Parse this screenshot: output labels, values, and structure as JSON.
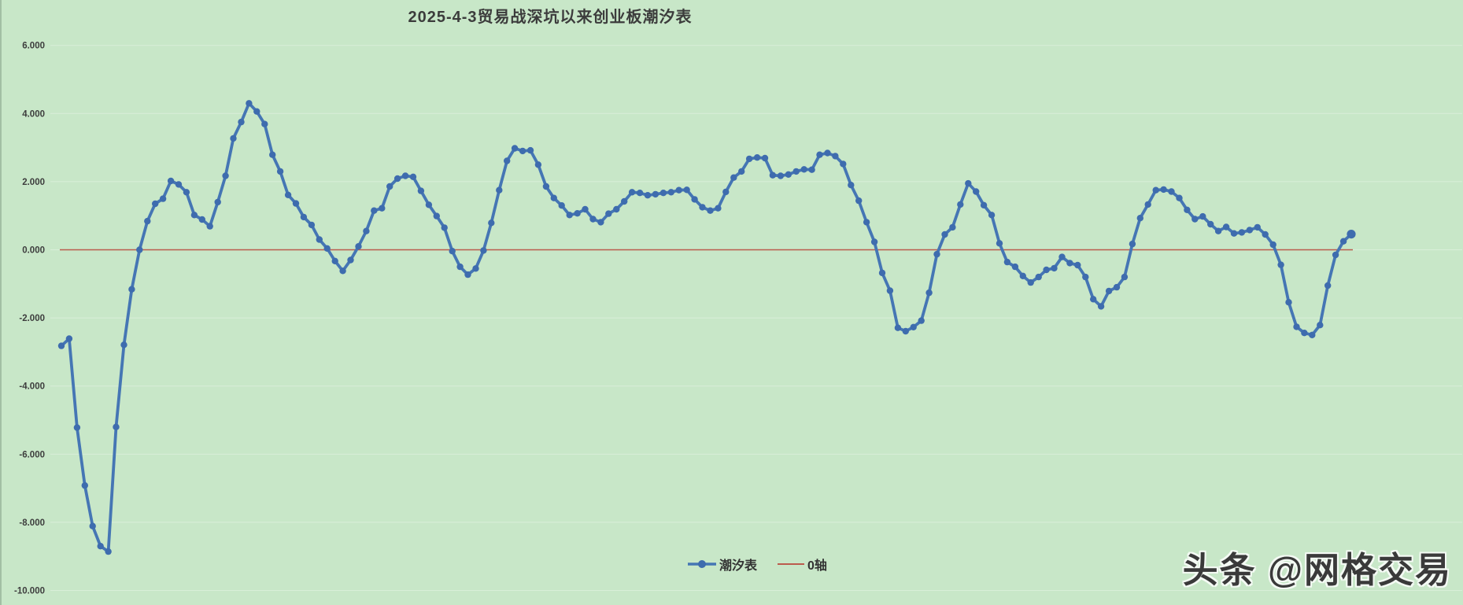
{
  "watermark": "头条 @网格交易",
  "colors": {
    "background": "#c8e7c8",
    "gridline": "#d9eed9",
    "tide_line": "#4576b4",
    "tide_marker": "#3e6cae",
    "zero_axis_line": "#bb5b4d",
    "title_text": "#3c3c3c",
    "axis_text": "#3d3d3d"
  },
  "chart_data": {
    "type": "line",
    "title": "2025-4-3贸易战深坑以来创业板潮汐表",
    "grid": true,
    "legend_position": "bottom-center",
    "x_axis": {
      "labels_visible": false,
      "points": 166
    },
    "y_axis": {
      "min": -10,
      "max": 6,
      "tick_step": 2,
      "tick_labels": [
        "6.000",
        "4.000",
        "2.000",
        "0.000",
        "-2.000",
        "-4.000",
        "-6.000",
        "-8.000",
        "-10.000"
      ]
    },
    "series": [
      {
        "name": "潮汐表",
        "color": "#4576b4",
        "marker": "circle",
        "values": [
          -2.82,
          -2.61,
          -5.22,
          -6.92,
          -8.11,
          -8.7,
          -8.86,
          -5.2,
          -2.79,
          -1.16,
          0.0,
          0.84,
          1.35,
          1.5,
          2.02,
          1.92,
          1.69,
          1.02,
          0.89,
          0.69,
          1.4,
          2.17,
          3.27,
          3.75,
          4.3,
          4.06,
          3.69,
          2.79,
          2.3,
          1.61,
          1.36,
          0.96,
          0.73,
          0.3,
          0.04,
          -0.33,
          -0.62,
          -0.3,
          0.1,
          0.55,
          1.15,
          1.22,
          1.86,
          2.09,
          2.17,
          2.14,
          1.73,
          1.32,
          0.99,
          0.65,
          -0.04,
          -0.5,
          -0.73,
          -0.55,
          -0.02,
          0.79,
          1.75,
          2.61,
          2.98,
          2.9,
          2.92,
          2.5,
          1.86,
          1.52,
          1.3,
          1.02,
          1.07,
          1.19,
          0.9,
          0.81,
          1.06,
          1.19,
          1.42,
          1.69,
          1.67,
          1.6,
          1.63,
          1.67,
          1.69,
          1.75,
          1.76,
          1.48,
          1.25,
          1.15,
          1.22,
          1.7,
          2.12,
          2.3,
          2.67,
          2.71,
          2.69,
          2.19,
          2.17,
          2.21,
          2.3,
          2.36,
          2.35,
          2.79,
          2.84,
          2.75,
          2.52,
          1.9,
          1.44,
          0.81,
          0.23,
          -0.68,
          -1.2,
          -2.29,
          -2.39,
          -2.27,
          -2.08,
          -1.26,
          -0.13,
          0.45,
          0.66,
          1.33,
          1.95,
          1.71,
          1.31,
          1.02,
          0.19,
          -0.36,
          -0.5,
          -0.77,
          -0.96,
          -0.8,
          -0.59,
          -0.54,
          -0.21,
          -0.39,
          -0.45,
          -0.8,
          -1.45,
          -1.66,
          -1.21,
          -1.1,
          -0.8,
          0.17,
          0.93,
          1.33,
          1.75,
          1.77,
          1.71,
          1.52,
          1.17,
          0.9,
          0.98,
          0.75,
          0.55,
          0.67,
          0.48,
          0.51,
          0.58,
          0.66,
          0.45,
          0.15,
          -0.44,
          -1.54,
          -2.26,
          -2.44,
          -2.5,
          -2.21,
          -1.05,
          -0.15,
          0.25,
          0.46
        ]
      },
      {
        "name": "0轴",
        "color": "#bb5b4d",
        "style": "horizontal-reference",
        "value": 0
      }
    ]
  }
}
